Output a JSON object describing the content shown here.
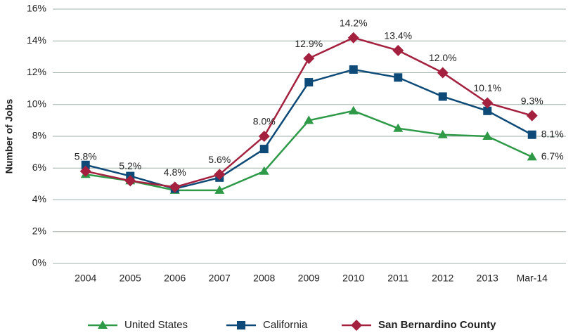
{
  "chart_data": {
    "type": "line",
    "y_label": "Number of Jobs",
    "categories": [
      "2004",
      "2005",
      "2006",
      "2007",
      "2008",
      "2009",
      "2010",
      "2011",
      "2012",
      "2013",
      "Mar-14"
    ],
    "ylim": [
      0,
      16
    ],
    "yticks": [
      {
        "value": 0,
        "label": "0%"
      },
      {
        "value": 2,
        "label": "2%"
      },
      {
        "value": 4,
        "label": "4%"
      },
      {
        "value": 6,
        "label": "6%"
      },
      {
        "value": 8,
        "label": "8%"
      },
      {
        "value": 10,
        "label": "10%"
      },
      {
        "value": 12,
        "label": "12%"
      },
      {
        "value": 14,
        "label": "14%"
      },
      {
        "value": 16,
        "label": "16%"
      }
    ],
    "grid": true,
    "legend": "bottom",
    "series": [
      {
        "name": "United States",
        "color": "#2e9a48",
        "marker": "triangle",
        "values": [
          5.6,
          5.2,
          4.6,
          4.6,
          5.8,
          9.0,
          9.6,
          8.5,
          8.1,
          8.0,
          6.7
        ],
        "value_labels": [
          null,
          null,
          null,
          null,
          null,
          null,
          null,
          null,
          null,
          null,
          "6.7%"
        ]
      },
      {
        "name": "California",
        "color": "#0e4a77",
        "marker": "square",
        "values": [
          6.2,
          5.5,
          4.7,
          5.4,
          7.2,
          11.4,
          12.2,
          11.7,
          10.5,
          9.6,
          8.1
        ],
        "value_labels": [
          null,
          null,
          null,
          null,
          null,
          null,
          null,
          null,
          null,
          null,
          "8.1%"
        ]
      },
      {
        "name": "San Bernardino County",
        "color": "#a3213f",
        "marker": "diamond",
        "values": [
          5.8,
          5.2,
          4.8,
          5.6,
          8.0,
          12.9,
          14.2,
          13.4,
          12.0,
          10.1,
          9.3
        ],
        "value_labels": [
          "5.8%",
          "5.2%",
          "4.8%",
          "5.6%",
          "8.0%",
          "12.9%",
          "14.2%",
          "13.4%",
          "12.0%",
          "10.1%",
          "9.3%"
        ]
      }
    ]
  }
}
